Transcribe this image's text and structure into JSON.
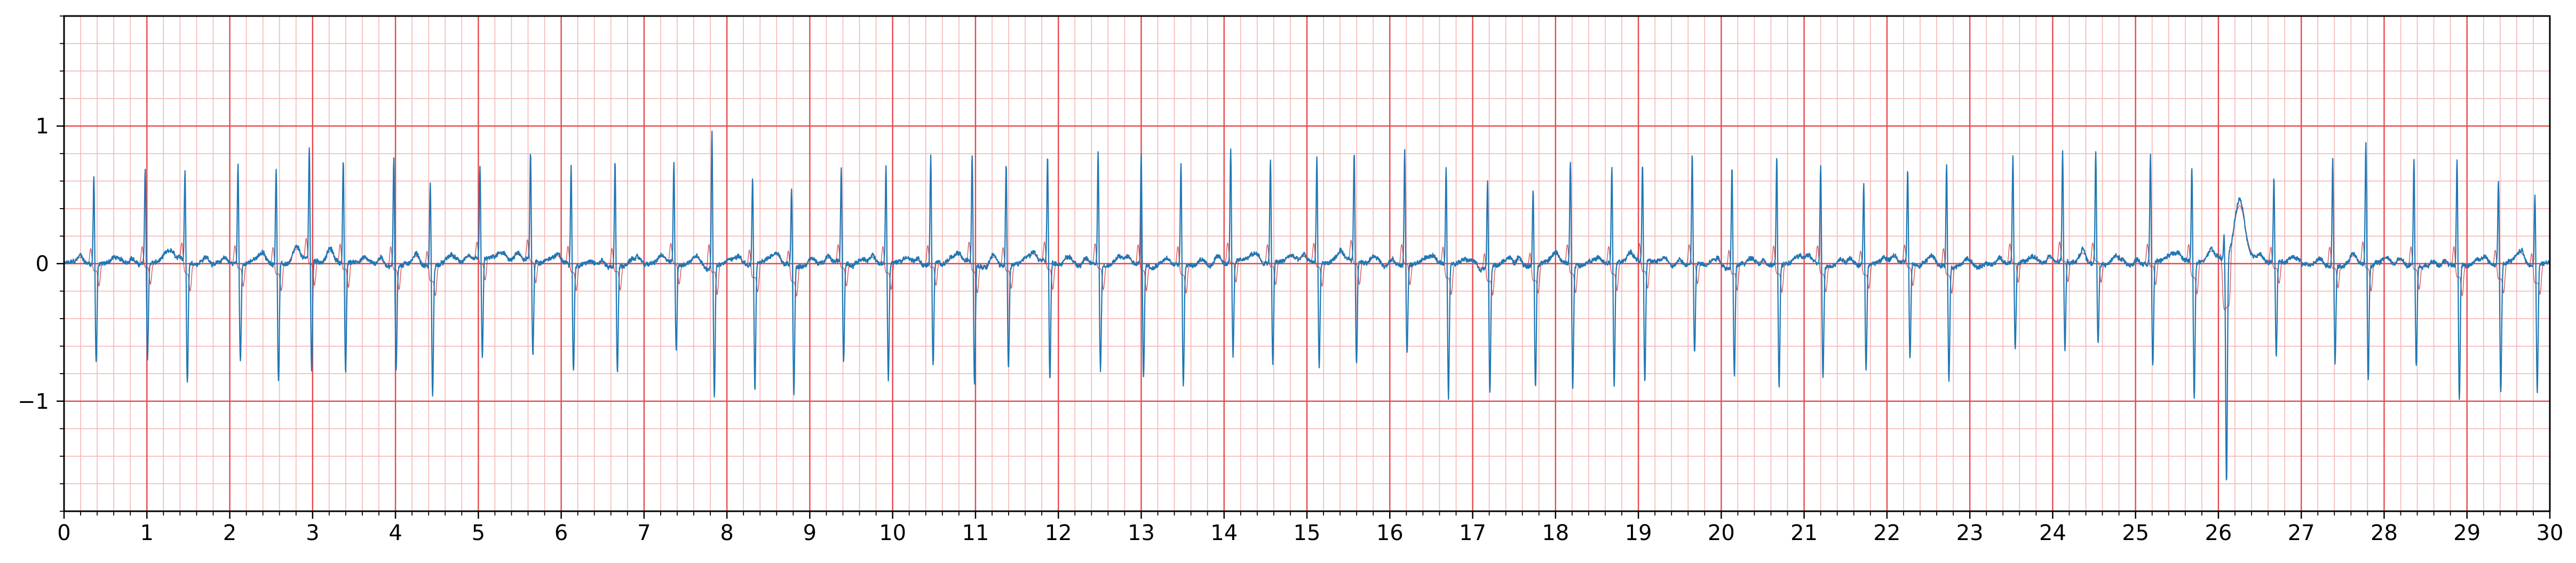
{
  "chart_data": {
    "type": "line",
    "title": "",
    "xlabel": "",
    "ylabel": "",
    "xlim": [
      0,
      30
    ],
    "ylim": [
      -1.8,
      1.8
    ],
    "x_ticks": [
      "0",
      "1",
      "2",
      "3",
      "4",
      "5",
      "6",
      "7",
      "8",
      "9",
      "10",
      "11",
      "12",
      "13",
      "14",
      "15",
      "16",
      "17",
      "18",
      "19",
      "20",
      "21",
      "22",
      "23",
      "24",
      "25",
      "26",
      "27",
      "28",
      "29",
      "30"
    ],
    "y_ticks": [
      {
        "value": 1,
        "label": "1"
      },
      {
        "value": 0,
        "label": "0"
      },
      {
        "value": -1,
        "label": "−1"
      }
    ],
    "grid": {
      "major": true,
      "minor": true,
      "major_x_step": 1,
      "minor_x_step": 0.2,
      "major_y_step": 1,
      "minor_y_step": 0.2
    },
    "colors": {
      "signal": "#1f77b4",
      "overlay": "#d62728",
      "major_grid": "#e8474c",
      "minor_grid": "#f6b6b6",
      "axes": "#000000"
    },
    "series": [
      {
        "style": "ecg-trace",
        "baseline": 0.0,
        "beats": [
          {
            "t": 0.36,
            "r": 0.65,
            "s": -0.7
          },
          {
            "t": 0.98,
            "r": 0.7,
            "s": -0.7
          },
          {
            "t": 1.46,
            "r": 0.67,
            "s": -0.88
          },
          {
            "t": 2.1,
            "r": 0.75,
            "s": -0.7
          },
          {
            "t": 2.56,
            "r": 0.73,
            "s": -0.85
          },
          {
            "t": 2.96,
            "r": 0.84,
            "s": -0.8
          },
          {
            "t": 3.37,
            "r": 0.77,
            "s": -0.8
          },
          {
            "t": 3.98,
            "r": 0.8,
            "s": -0.75
          },
          {
            "t": 4.42,
            "r": 0.62,
            "s": -0.95
          },
          {
            "t": 5.02,
            "r": 0.67,
            "s": -0.72
          },
          {
            "t": 5.63,
            "r": 0.8,
            "s": -0.68
          },
          {
            "t": 6.12,
            "r": 0.75,
            "s": -0.77
          },
          {
            "t": 6.65,
            "r": 0.78,
            "s": -0.77
          },
          {
            "t": 7.36,
            "r": 0.74,
            "s": -0.63
          },
          {
            "t": 7.82,
            "r": 1.0,
            "s": -0.95
          },
          {
            "t": 8.31,
            "r": 0.65,
            "s": -0.92
          },
          {
            "t": 8.78,
            "r": 0.57,
            "s": -0.93
          },
          {
            "t": 9.38,
            "r": 0.71,
            "s": -0.72
          },
          {
            "t": 9.92,
            "r": 0.71,
            "s": -0.85
          },
          {
            "t": 10.46,
            "r": 0.8,
            "s": -0.74
          },
          {
            "t": 10.96,
            "r": 0.81,
            "s": -0.88
          },
          {
            "t": 11.37,
            "r": 0.78,
            "s": -0.74
          },
          {
            "t": 11.87,
            "r": 0.8,
            "s": -0.85
          },
          {
            "t": 12.48,
            "r": 0.85,
            "s": -0.77
          },
          {
            "t": 13.0,
            "r": 0.8,
            "s": -0.82
          },
          {
            "t": 13.48,
            "r": 0.75,
            "s": -0.88
          },
          {
            "t": 14.08,
            "r": 0.84,
            "s": -0.67
          },
          {
            "t": 14.56,
            "r": 0.76,
            "s": -0.73
          },
          {
            "t": 15.12,
            "r": 0.78,
            "s": -0.75
          },
          {
            "t": 15.57,
            "r": 0.8,
            "s": -0.75
          },
          {
            "t": 16.18,
            "r": 0.86,
            "s": -0.65
          },
          {
            "t": 16.68,
            "r": 0.72,
            "s": -0.96
          },
          {
            "t": 17.18,
            "r": 0.65,
            "s": -0.92
          },
          {
            "t": 17.73,
            "r": 0.57,
            "s": -0.88
          },
          {
            "t": 18.18,
            "r": 0.75,
            "s": -0.89
          },
          {
            "t": 18.68,
            "r": 0.72,
            "s": -0.9
          },
          {
            "t": 19.05,
            "r": 0.73,
            "s": -0.88
          },
          {
            "t": 19.65,
            "r": 0.81,
            "s": -0.66
          },
          {
            "t": 20.13,
            "r": 0.75,
            "s": -0.82
          },
          {
            "t": 20.67,
            "r": 0.8,
            "s": -0.88
          },
          {
            "t": 21.2,
            "r": 0.72,
            "s": -0.82
          },
          {
            "t": 21.72,
            "r": 0.6,
            "s": -0.75
          },
          {
            "t": 22.25,
            "r": 0.7,
            "s": -0.7
          },
          {
            "t": 22.72,
            "r": 0.76,
            "s": -0.83
          },
          {
            "t": 23.52,
            "r": 0.78,
            "s": -0.63
          },
          {
            "t": 24.12,
            "r": 0.81,
            "s": -0.65
          },
          {
            "t": 24.52,
            "r": 0.82,
            "s": -0.58
          },
          {
            "t": 25.18,
            "r": 0.8,
            "s": -0.75
          },
          {
            "t": 25.68,
            "r": 0.72,
            "s": -1.0
          },
          {
            "t": 26.07,
            "r": 0.2,
            "s": -1.65
          },
          {
            "t": 26.67,
            "r": 0.63,
            "s": -0.7
          },
          {
            "t": 27.38,
            "r": 0.8,
            "s": -0.7
          },
          {
            "t": 27.78,
            "r": 0.92,
            "s": -0.84
          },
          {
            "t": 28.36,
            "r": 0.78,
            "s": -0.73
          },
          {
            "t": 28.88,
            "r": 0.8,
            "s": -0.97
          },
          {
            "t": 29.38,
            "r": 0.63,
            "s": -0.93
          },
          {
            "t": 29.82,
            "r": 0.52,
            "s": -0.93
          }
        ],
        "wide_complex": {
          "t": 26.25,
          "peak": 0.43
        }
      }
    ]
  }
}
